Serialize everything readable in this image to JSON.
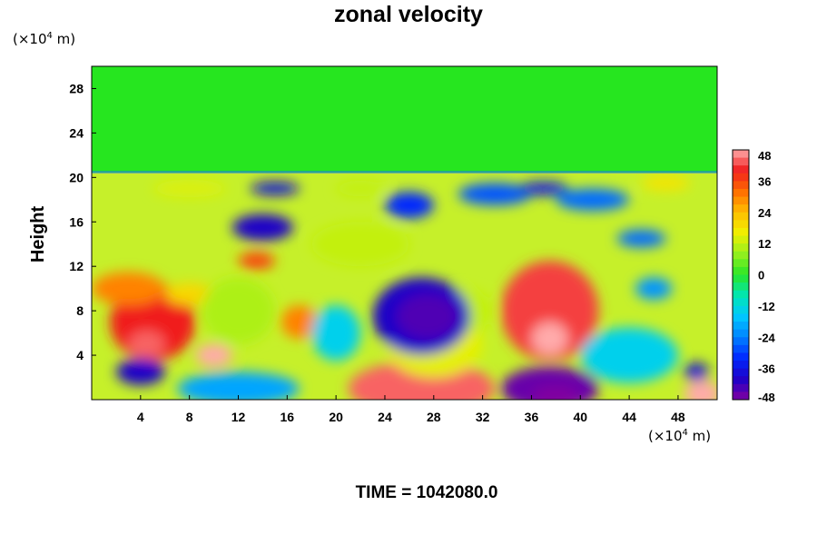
{
  "chart_data": {
    "type": "heatmap",
    "title": "zonal velocity",
    "ylabel": "Height",
    "xlabel": "",
    "x_unit": {
      "prefix": "(×10",
      "exponent": "4",
      "suffix": " m)"
    },
    "y_unit": {
      "prefix": "(×10",
      "exponent": "4",
      "suffix": " m)"
    },
    "x_ticks": [
      4,
      8,
      12,
      16,
      20,
      24,
      28,
      32,
      36,
      40,
      44,
      48
    ],
    "y_ticks": [
      4,
      8,
      12,
      16,
      20,
      24,
      28
    ],
    "xlim": [
      0,
      51.2
    ],
    "ylim": [
      0,
      30
    ],
    "colorbar_ticks": [
      48,
      36,
      24,
      12,
      0,
      -12,
      -24,
      -36,
      -48
    ],
    "colorbar_range": [
      -48,
      48
    ],
    "annotation": "TIME = 1042080.0",
    "field_features": [
      {
        "x": 5,
        "y": 7,
        "rx": 3.5,
        "ry": 3.5,
        "value": 40
      },
      {
        "x": 4.5,
        "y": 5,
        "rx": 1.5,
        "ry": 1.2,
        "value": 44
      },
      {
        "x": 10,
        "y": 4,
        "rx": 1.5,
        "ry": 1.0,
        "value": 48
      },
      {
        "x": 3,
        "y": 10,
        "rx": 3,
        "ry": 1.5,
        "value": 30
      },
      {
        "x": 8,
        "y": 9.5,
        "rx": 2,
        "ry": 1,
        "value": 20
      },
      {
        "x": 37.5,
        "y": 8,
        "rx": 4,
        "ry": 4.5,
        "value": 42
      },
      {
        "x": 37.5,
        "y": 5.5,
        "rx": 1.5,
        "ry": 1.5,
        "value": 48
      },
      {
        "x": 27,
        "y": 1,
        "rx": 6,
        "ry": 2.5,
        "value": 44
      },
      {
        "x": 50,
        "y": 0.5,
        "rx": 1.5,
        "ry": 1.2,
        "value": 48
      },
      {
        "x": 13.5,
        "y": 12.5,
        "rx": 1.5,
        "ry": 0.8,
        "value": 36
      },
      {
        "x": 17,
        "y": 7,
        "rx": 1.5,
        "ry": 1.5,
        "value": 30
      },
      {
        "x": 28,
        "y": 5,
        "rx": 4,
        "ry": 3,
        "value": 15
      },
      {
        "x": 30,
        "y": 8,
        "rx": 3,
        "ry": 2,
        "value": 12
      },
      {
        "x": 22,
        "y": 14,
        "rx": 4,
        "ry": 2,
        "value": 12
      },
      {
        "x": 12,
        "y": 8,
        "rx": 3,
        "ry": 3,
        "value": 10
      },
      {
        "x": 27,
        "y": 7.5,
        "rx": 4,
        "ry": 3.5,
        "value": -40
      },
      {
        "x": 27.5,
        "y": 7.5,
        "rx": 2.5,
        "ry": 2,
        "value": -44
      },
      {
        "x": 37.5,
        "y": 1,
        "rx": 4,
        "ry": 2,
        "value": -46
      },
      {
        "x": 38,
        "y": 0.3,
        "rx": 2,
        "ry": 1,
        "value": -48
      },
      {
        "x": 4,
        "y": 2.5,
        "rx": 2,
        "ry": 1.2,
        "value": -40
      },
      {
        "x": 12,
        "y": 1,
        "rx": 5,
        "ry": 1.5,
        "value": -20
      },
      {
        "x": 14,
        "y": 15.5,
        "rx": 2.5,
        "ry": 1.2,
        "value": -40
      },
      {
        "x": 15,
        "y": 19,
        "rx": 2,
        "ry": 0.6,
        "value": -38
      },
      {
        "x": 26,
        "y": 17.5,
        "rx": 2,
        "ry": 1.2,
        "value": -32
      },
      {
        "x": 33,
        "y": 18.5,
        "rx": 3,
        "ry": 1,
        "value": -28
      },
      {
        "x": 37,
        "y": 19,
        "rx": 2,
        "ry": 0.6,
        "value": -36
      },
      {
        "x": 41,
        "y": 18,
        "rx": 3,
        "ry": 1,
        "value": -26
      },
      {
        "x": 45,
        "y": 14.5,
        "rx": 2,
        "ry": 0.8,
        "value": -26
      },
      {
        "x": 46,
        "y": 10,
        "rx": 1.5,
        "ry": 1,
        "value": -22
      },
      {
        "x": 49.5,
        "y": 2.5,
        "rx": 1,
        "ry": 0.8,
        "value": -38
      },
      {
        "x": 44,
        "y": 4,
        "rx": 4,
        "ry": 2.5,
        "value": -14
      },
      {
        "x": 20,
        "y": 6,
        "rx": 2,
        "ry": 2.5,
        "value": -14
      },
      {
        "x": 47,
        "y": 19.5,
        "rx": 2,
        "ry": 0.7,
        "value": 18
      },
      {
        "x": 8,
        "y": 19,
        "rx": 3,
        "ry": 0.8,
        "value": 14
      },
      {
        "x": 22,
        "y": 19,
        "rx": 2,
        "ry": 0.7,
        "value": 12
      }
    ]
  },
  "colors": {
    "top_layer": "#26e61f",
    "frame": "#000000"
  }
}
